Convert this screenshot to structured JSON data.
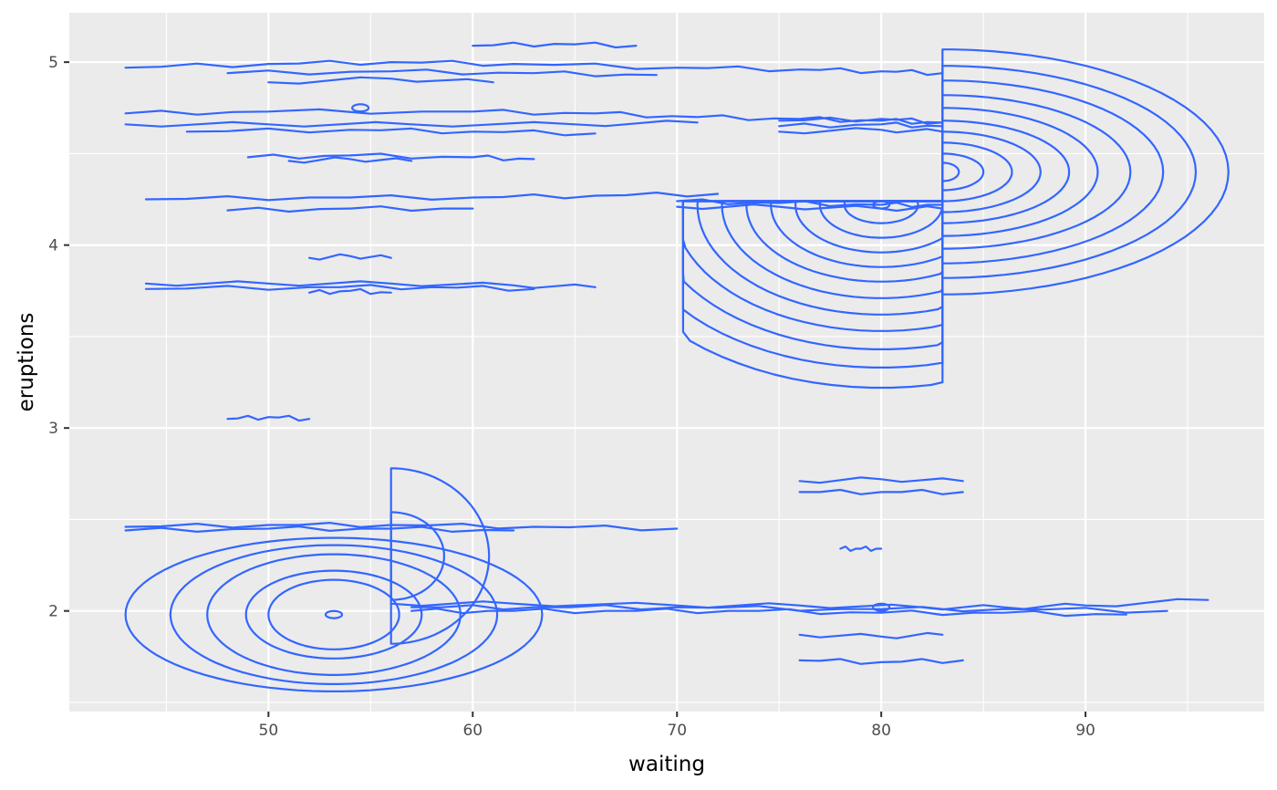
{
  "chart_data": {
    "type": "contour",
    "title": "",
    "xlabel": "waiting",
    "ylabel": "eruptions",
    "xlim": [
      40.25,
      98.75
    ],
    "ylim": [
      1.45,
      5.27
    ],
    "x_ticks": [
      50,
      60,
      70,
      80,
      90
    ],
    "y_ticks": [
      2,
      3,
      4,
      5
    ],
    "x_tick_labels": [
      "50",
      "60",
      "70",
      "80",
      "90"
    ],
    "y_tick_labels": [
      "2",
      "3",
      "4",
      "5"
    ],
    "grid": true,
    "legend": "none",
    "colors": {
      "panel": "#ebebeb",
      "grid": "#ffffff",
      "line": "#3366ff"
    },
    "density_peaks": [
      {
        "waiting": 54.5,
        "eruptions": 4.75
      },
      {
        "waiting": 80,
        "eruptions": 4.22
      },
      {
        "waiting": 53.2,
        "eruptions": 1.98
      },
      {
        "waiting": 80,
        "eruptions": 2.02
      }
    ],
    "contours": [
      {
        "x": [
          43,
          50,
          56,
          62,
          70,
          76,
          80,
          83
        ],
        "y": [
          4.97,
          4.99,
          5.0,
          4.99,
          4.97,
          4.96,
          4.95,
          4.94
        ]
      },
      {
        "x": [
          48,
          56,
          63,
          69
        ],
        "y": [
          4.94,
          4.95,
          4.94,
          4.93
        ]
      },
      {
        "x": [
          50,
          56,
          61
        ],
        "y": [
          4.89,
          4.91,
          4.89
        ]
      },
      {
        "x": [
          60,
          64,
          68
        ],
        "y": [
          5.09,
          5.1,
          5.09
        ]
      },
      {
        "x": [
          43,
          50,
          60,
          66,
          71,
          76,
          80,
          83
        ],
        "y": [
          4.72,
          4.73,
          4.73,
          4.72,
          4.7,
          4.69,
          4.68,
          4.67
        ]
      },
      {
        "x": [
          43,
          50,
          57,
          65,
          71
        ],
        "y": [
          4.66,
          4.66,
          4.66,
          4.66,
          4.67
        ]
      },
      {
        "x": [
          46,
          54,
          60,
          66
        ],
        "y": [
          4.62,
          4.63,
          4.62,
          4.61
        ]
      },
      {
        "x": [
          49,
          54,
          60,
          63
        ],
        "y": [
          4.48,
          4.49,
          4.48,
          4.47
        ]
      },
      {
        "x": [
          51,
          54,
          57
        ],
        "y": [
          4.46,
          4.47,
          4.46
        ]
      },
      {
        "x": [
          44,
          52,
          60,
          66,
          72
        ],
        "y": [
          4.25,
          4.26,
          4.26,
          4.27,
          4.28
        ]
      },
      {
        "x": [
          48,
          54,
          60
        ],
        "y": [
          4.19,
          4.2,
          4.2
        ]
      },
      {
        "x": [
          44,
          50,
          56,
          62,
          66
        ],
        "y": [
          3.79,
          3.79,
          3.79,
          3.78,
          3.77
        ]
      },
      {
        "x": [
          44,
          52,
          58,
          63
        ],
        "y": [
          3.76,
          3.77,
          3.77,
          3.76
        ]
      },
      {
        "x": [
          52,
          54,
          56
        ],
        "y": [
          3.74,
          3.75,
          3.74
        ]
      },
      {
        "x": [
          52,
          54,
          56
        ],
        "y": [
          3.93,
          3.94,
          3.93
        ]
      },
      {
        "x": [
          48,
          50,
          52
        ],
        "y": [
          3.05,
          3.06,
          3.05
        ]
      },
      {
        "x": [
          70,
          75,
          80,
          83
        ],
        "y": [
          4.24,
          4.23,
          4.22,
          4.22
        ]
      },
      {
        "x": [
          70,
          75,
          80,
          83
        ],
        "y": [
          4.21,
          4.21,
          4.2,
          4.2
        ]
      },
      {
        "x": [
          75,
          80,
          83
        ],
        "y": [
          4.68,
          4.69,
          4.67
        ]
      },
      {
        "x": [
          75,
          80,
          83
        ],
        "y": [
          4.65,
          4.66,
          4.65
        ]
      },
      {
        "x": [
          75,
          80,
          83
        ],
        "y": [
          4.62,
          4.63,
          4.62
        ]
      },
      {
        "x": [
          43,
          50,
          56,
          63,
          70
        ],
        "y": [
          2.46,
          2.47,
          2.47,
          2.46,
          2.45
        ]
      },
      {
        "x": [
          43,
          50,
          56,
          62
        ],
        "y": [
          2.44,
          2.45,
          2.45,
          2.44
        ]
      },
      {
        "x": [
          56,
          62,
          70,
          76,
          82,
          86,
          90,
          96
        ],
        "y": [
          2.04,
          2.04,
          2.03,
          2.03,
          2.02,
          2.02,
          2.03,
          2.06
        ]
      },
      {
        "x": [
          57,
          63,
          70,
          78,
          86,
          94
        ],
        "y": [
          2.02,
          2.02,
          2.02,
          2.01,
          2.01,
          2.0
        ]
      },
      {
        "x": [
          57,
          62,
          68,
          74,
          80,
          86,
          92
        ],
        "y": [
          2.0,
          2.0,
          2.0,
          2.0,
          1.99,
          1.99,
          1.98
        ]
      },
      {
        "x": [
          76,
          80,
          83
        ],
        "y": [
          1.87,
          1.86,
          1.87
        ]
      },
      {
        "x": [
          76,
          80,
          84
        ],
        "y": [
          1.73,
          1.72,
          1.73
        ]
      },
      {
        "x": [
          78,
          79,
          80
        ],
        "y": [
          2.34,
          2.34,
          2.34
        ]
      },
      {
        "x": [
          76,
          80,
          84
        ],
        "y": [
          2.71,
          2.72,
          2.71
        ]
      },
      {
        "x": [
          76,
          80,
          84
        ],
        "y": [
          2.65,
          2.65,
          2.65
        ]
      }
    ],
    "rings": [
      {
        "cx": 53.2,
        "cy": 1.98,
        "rx": [
          10.2,
          8.0,
          6.2,
          4.3,
          3.2
        ],
        "ry": [
          0.42,
          0.38,
          0.33,
          0.24,
          0.19
        ],
        "clip_x_min": 43
      },
      {
        "cx": 80,
        "cy": 4.22,
        "rx": [
          14,
          12.7,
          11.4,
          10.2,
          9.0,
          7.8,
          6.6,
          5.4,
          4.2,
          3.0,
          1.8
        ],
        "ry": [
          1.0,
          0.89,
          0.79,
          0.69,
          0.6,
          0.51,
          0.42,
          0.34,
          0.26,
          0.18,
          0.1
        ],
        "clip_y_max": 4.24,
        "clip_x_min": 70.3,
        "clip_x_max": 83
      },
      {
        "cx": 83,
        "cy": 4.4,
        "rx": [
          14,
          12.4,
          10.8,
          9.2,
          7.6,
          6.2,
          4.8,
          3.4,
          2.0,
          0.8
        ],
        "ry": [
          0.67,
          0.58,
          0.5,
          0.42,
          0.35,
          0.28,
          0.22,
          0.16,
          0.1,
          0.05
        ],
        "clip_x_min": 83
      },
      {
        "cx": 56,
        "cy": 2.3,
        "rx": [
          4.8,
          2.6
        ],
        "ry": [
          0.48,
          0.24
        ],
        "clip_x_min": 56
      }
    ]
  }
}
